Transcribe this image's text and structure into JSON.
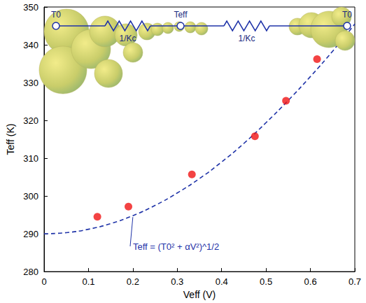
{
  "chart_data": {
    "type": "scatter",
    "x_label": "Veff (V)",
    "y_label": "Teff (K)",
    "xlim": [
      0,
      0.7
    ],
    "xticks": [
      0,
      0.1,
      0.2,
      0.3,
      0.4,
      0.5,
      0.6,
      0.7
    ],
    "ylim": [
      280,
      350
    ],
    "yticks": [
      280,
      290,
      300,
      310,
      320,
      330,
      340,
      350
    ],
    "grid": false,
    "series": [
      {
        "type": "scatter",
        "color": "#f01414",
        "marker": "circle",
        "x": [
          0.12,
          0.19,
          0.333,
          0.475,
          0.545,
          0.615
        ],
        "values": [
          294.5,
          297.2,
          305.7,
          315.8,
          325.2,
          336.2
        ]
      },
      {
        "type": "line",
        "color": "#1f33a8",
        "line_style": "dashed",
        "x": [
          0,
          0.05,
          0.1,
          0.15,
          0.2,
          0.25,
          0.3,
          0.35,
          0.4,
          0.45,
          0.5,
          0.55,
          0.6,
          0.65,
          0.7
        ],
        "values": [
          290,
          290.3,
          291.2,
          292.7,
          294.8,
          297.5,
          300.8,
          304.6,
          309,
          313.9,
          319.4,
          325.3,
          331.6,
          338.3,
          345.5
        ]
      }
    ],
    "annotation": "Teff = (T0² + αV²)^1/2",
    "inset": {
      "node_labels": [
        "T0",
        "Teff",
        "T0"
      ],
      "resistor_labels": [
        "1/Kc",
        "1/Kc"
      ]
    }
  }
}
